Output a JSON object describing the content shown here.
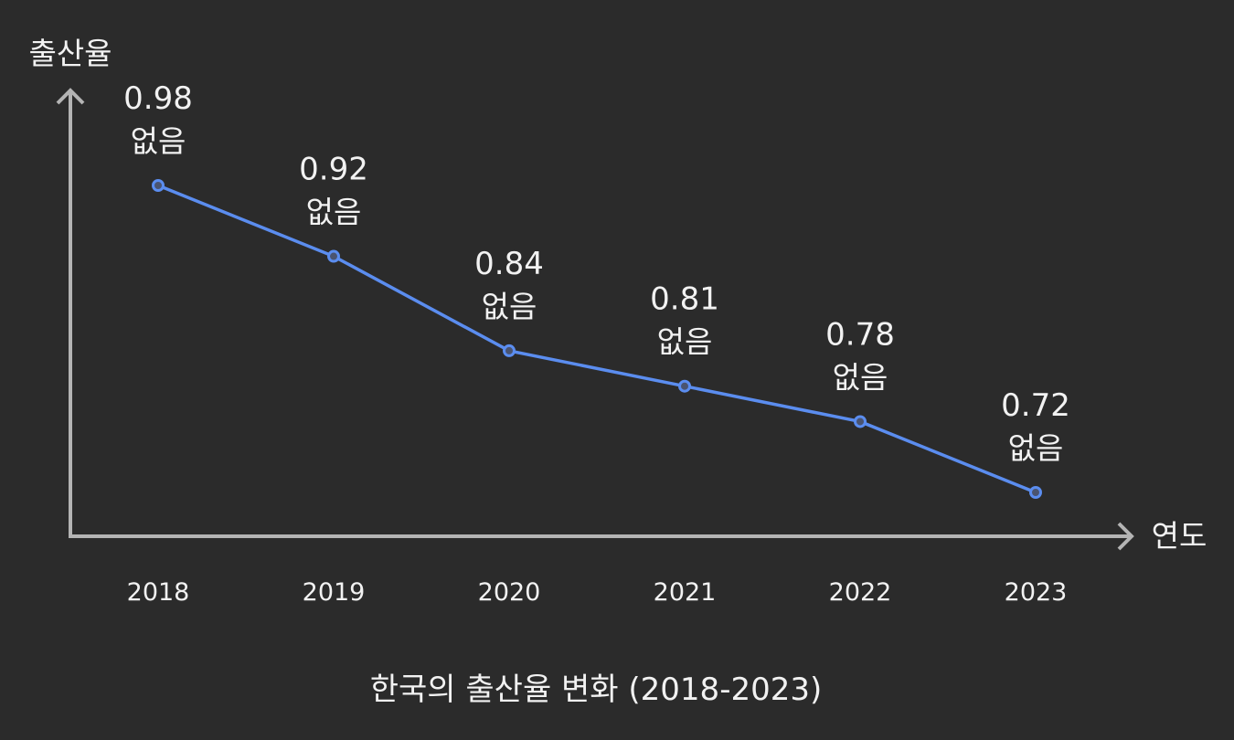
{
  "chart_data": {
    "type": "line",
    "title": "한국의 출산율 변화 (2018-2023)",
    "xlabel": "연도",
    "ylabel": "출산율",
    "categories": [
      "2018",
      "2019",
      "2020",
      "2021",
      "2022",
      "2023"
    ],
    "series": [
      {
        "name": "출산율",
        "values": [
          0.98,
          0.92,
          0.84,
          0.81,
          0.78,
          0.72
        ],
        "annotations": [
          "없음",
          "없음",
          "없음",
          "없음",
          "없음",
          "없음"
        ],
        "color": "#5b8def"
      }
    ],
    "grid": false,
    "legend": "none"
  },
  "colors": {
    "background": "#2b2b2b",
    "axis": "#b4b4b4",
    "line": "#5b8def",
    "marker_fill": "#4a5470",
    "text": "#f2f2f2"
  }
}
